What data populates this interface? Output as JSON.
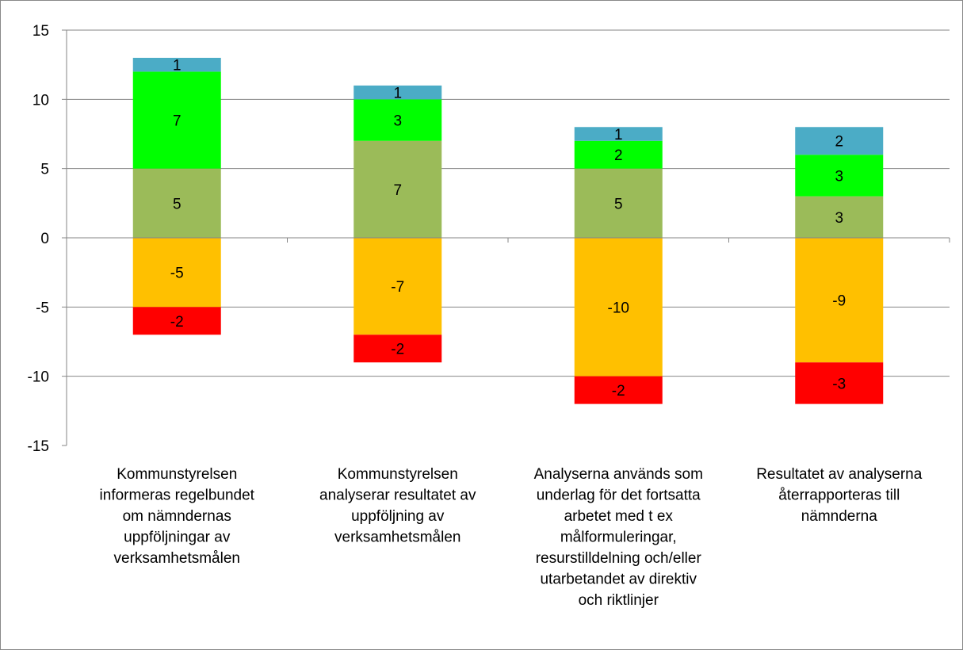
{
  "chart_data": {
    "type": "bar",
    "stacked": true,
    "categories": [
      [
        "Kommunstyrelsen",
        "informeras regelbundet",
        "om nämndernas",
        "uppföljningar av",
        "verksamhetsmålen"
      ],
      [
        "Kommunstyrelsen",
        "analyserar resultatet av",
        "uppföljning av",
        "verksamhetsmålen"
      ],
      [
        "Analyserna används som",
        "underlag för det fortsatta",
        "arbetet med t ex",
        "målformuleringar,",
        "resurstilldelning och/eller",
        "utarbetandet av direktiv",
        "och riktlinjer"
      ],
      [
        "Resultatet av analyserna",
        "återrapporteras till",
        "nämnderna"
      ]
    ],
    "series_positive": [
      {
        "color": "#9BBB59",
        "values": [
          5,
          7,
          5,
          3
        ]
      },
      {
        "color": "#00FF00",
        "values": [
          7,
          3,
          2,
          3
        ]
      },
      {
        "color": "#4BACC6",
        "values": [
          1,
          1,
          1,
          2
        ]
      }
    ],
    "series_negative": [
      {
        "color": "#FFC000",
        "values": [
          -5,
          -7,
          -10,
          -9
        ]
      },
      {
        "color": "#FF0000",
        "values": [
          -2,
          -2,
          -2,
          -3
        ]
      }
    ],
    "ylim": [
      -15,
      15
    ],
    "yticks": [
      15,
      10,
      5,
      0,
      -5,
      -10,
      -15
    ],
    "grid": true,
    "legend": "none",
    "gridline_color": "#868686"
  }
}
